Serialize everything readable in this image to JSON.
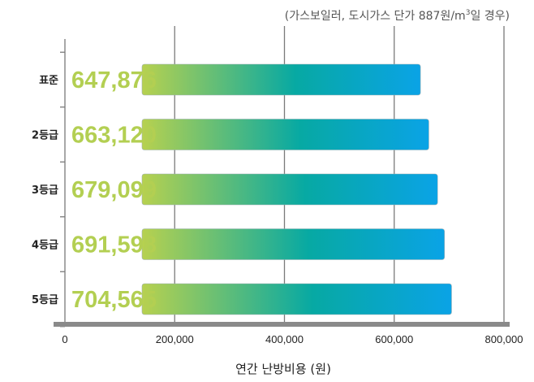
{
  "note": {
    "prefix": "(가스보일러, 도시가스 단가 887원/m",
    "superscript": "3",
    "suffix": "일 경우)"
  },
  "colors": {
    "bar_start": "#b7d14f",
    "bar_mid": "#07a9a3",
    "bar_end": "#0aa3e6",
    "value_text": "#b3cf52",
    "axis": "#8a8a8a",
    "grid": "#7a7a7a"
  },
  "chart_data": {
    "type": "bar",
    "orientation": "horizontal",
    "categories": [
      "표준",
      "2등급",
      "3등급",
      "4등급",
      "5등급"
    ],
    "values": [
      647876,
      663120,
      679099,
      691598,
      704565
    ],
    "value_labels": [
      "647,876",
      "663,120",
      "679,099",
      "691,598",
      "704,565"
    ],
    "xlim": [
      0,
      800000
    ],
    "ticks": [
      0,
      200000,
      400000,
      600000,
      800000
    ],
    "tick_labels": [
      "0",
      "200,000",
      "400,000",
      "600,000",
      "800,000"
    ],
    "xlabel": "연간 난방비용 (원)",
    "grid": true
  }
}
